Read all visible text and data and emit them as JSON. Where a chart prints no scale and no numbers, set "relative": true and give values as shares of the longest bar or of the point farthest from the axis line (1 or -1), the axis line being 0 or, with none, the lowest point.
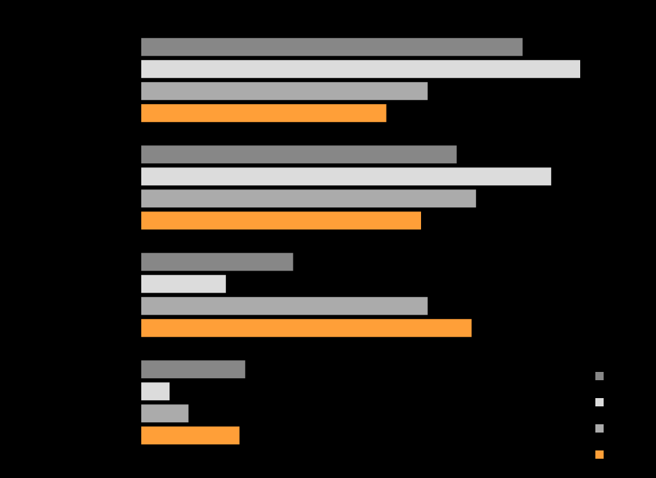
{
  "chart_data": {
    "type": "bar",
    "orientation": "horizontal",
    "relative": true,
    "categories": [
      null,
      null,
      null,
      null
    ],
    "series": [
      {
        "color": "#878787",
        "values": [
          0.869,
          0.719,
          0.347,
          0.238
        ]
      },
      {
        "color": "#dcdcdc",
        "values": [
          1,
          0.934,
          0.194,
          0.066
        ]
      },
      {
        "color": "#ababab",
        "values": [
          0.653,
          0.763,
          0.653,
          0.109
        ]
      },
      {
        "color": "#ff9f38",
        "values": [
          0.559,
          0.638,
          0.753,
          0.225
        ]
      }
    ]
  }
}
